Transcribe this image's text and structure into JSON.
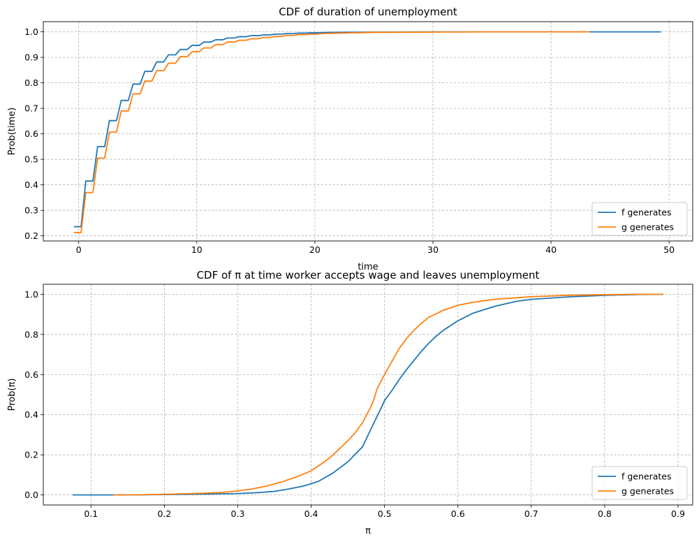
{
  "chart_data": [
    {
      "type": "line",
      "title": "CDF of duration of unemployment",
      "xlabel": "time",
      "ylabel": "Prob(time)",
      "xlim": [
        -3,
        52
      ],
      "ylim": [
        0.18,
        1.04
      ],
      "xticks": [
        0,
        10,
        20,
        30,
        40,
        50
      ],
      "xtick_labels": [
        "0",
        "10",
        "20",
        "30",
        "40",
        "50"
      ],
      "yticks": [
        0.2,
        0.3,
        0.4,
        0.5,
        0.6,
        0.7,
        0.8,
        0.9,
        1.0
      ],
      "ytick_labels": [
        "0.2",
        "0.3",
        "0.4",
        "0.5",
        "0.6",
        "0.7",
        "0.8",
        "0.9",
        "1.0"
      ],
      "grid": true,
      "legend_position": "lower-right",
      "series": [
        {
          "name": "f generates",
          "color": "#1f77b4",
          "x": [
            -0.4,
            0.2,
            0.6,
            1.2,
            1.6,
            2.2,
            2.6,
            3.2,
            3.6,
            4.2,
            4.6,
            5.2,
            5.6,
            6.2,
            6.6,
            7.2,
            7.6,
            8.2,
            8.6,
            9.2,
            9.6,
            10.2,
            10.6,
            11.2,
            11.6,
            12.2,
            12.6,
            13.2,
            13.6,
            14.2,
            14.6,
            15.2,
            15.6,
            16.2,
            16.6,
            17.2,
            17.6,
            18.2,
            18.6,
            19.2,
            19.6,
            20.2,
            20.6,
            22,
            25,
            30,
            35,
            40,
            45,
            49.3
          ],
          "y": [
            0.236,
            0.236,
            0.415,
            0.415,
            0.55,
            0.55,
            0.652,
            0.652,
            0.731,
            0.731,
            0.795,
            0.795,
            0.845,
            0.845,
            0.882,
            0.882,
            0.91,
            0.91,
            0.931,
            0.931,
            0.947,
            0.947,
            0.96,
            0.96,
            0.969,
            0.969,
            0.976,
            0.976,
            0.981,
            0.981,
            0.985,
            0.985,
            0.988,
            0.988,
            0.991,
            0.991,
            0.993,
            0.993,
            0.995,
            0.995,
            0.996,
            0.996,
            0.997,
            0.998,
            0.999,
            1.0,
            1.0,
            1.0,
            1.0,
            1.0
          ]
        },
        {
          "name": "g generates",
          "color": "#ff7f0e",
          "x": [
            -0.4,
            0.2,
            0.6,
            1.2,
            1.6,
            2.2,
            2.6,
            3.2,
            3.6,
            4.2,
            4.6,
            5.2,
            5.6,
            6.2,
            6.6,
            7.2,
            7.6,
            8.2,
            8.6,
            9.2,
            9.6,
            10.2,
            10.6,
            11.2,
            11.6,
            12.2,
            12.6,
            13.2,
            13.6,
            14.2,
            14.6,
            15.2,
            15.6,
            16.2,
            16.6,
            17.2,
            17.6,
            18.2,
            18.6,
            19.2,
            19.6,
            20.2,
            20.6,
            22,
            25,
            30,
            35,
            40,
            43.3
          ],
          "y": [
            0.213,
            0.213,
            0.37,
            0.37,
            0.505,
            0.505,
            0.607,
            0.607,
            0.69,
            0.69,
            0.757,
            0.757,
            0.807,
            0.807,
            0.848,
            0.848,
            0.877,
            0.877,
            0.903,
            0.903,
            0.922,
            0.922,
            0.937,
            0.937,
            0.95,
            0.95,
            0.96,
            0.96,
            0.967,
            0.967,
            0.973,
            0.973,
            0.978,
            0.978,
            0.982,
            0.982,
            0.986,
            0.986,
            0.989,
            0.989,
            0.991,
            0.991,
            0.993,
            0.995,
            0.998,
            0.999,
            1.0,
            1.0,
            1.0
          ]
        }
      ]
    },
    {
      "type": "line",
      "title": "CDF of π at time worker accepts wage and leaves unemployment",
      "xlabel": "π",
      "ylabel": "Prob(π)",
      "xlim": [
        0.035,
        0.92
      ],
      "ylim": [
        -0.05,
        1.05
      ],
      "xticks": [
        0.1,
        0.2,
        0.3,
        0.4,
        0.5,
        0.6,
        0.7,
        0.8,
        0.9
      ],
      "xtick_labels": [
        "0.1",
        "0.2",
        "0.3",
        "0.4",
        "0.5",
        "0.6",
        "0.7",
        "0.8",
        "0.9"
      ],
      "yticks": [
        0.0,
        0.2,
        0.4,
        0.6,
        0.8,
        1.0
      ],
      "ytick_labels": [
        "0.0",
        "0.2",
        "0.4",
        "0.6",
        "0.8",
        "1.0"
      ],
      "grid": true,
      "legend_position": "lower-right",
      "series": [
        {
          "name": "f generates",
          "color": "#1f77b4",
          "x": [
            0.075,
            0.1,
            0.15,
            0.2,
            0.25,
            0.3,
            0.33,
            0.35,
            0.37,
            0.39,
            0.41,
            0.43,
            0.45,
            0.47,
            0.485,
            0.495,
            0.5,
            0.51,
            0.52,
            0.53,
            0.54,
            0.55,
            0.56,
            0.57,
            0.58,
            0.6,
            0.62,
            0.65,
            0.68,
            0.7,
            0.75,
            0.8,
            0.85,
            0.88
          ],
          "y": [
            0.0,
            0.0,
            0.0,
            0.002,
            0.004,
            0.007,
            0.012,
            0.018,
            0.03,
            0.045,
            0.068,
            0.11,
            0.165,
            0.24,
            0.355,
            0.43,
            0.47,
            0.52,
            0.575,
            0.625,
            0.67,
            0.715,
            0.755,
            0.79,
            0.82,
            0.868,
            0.905,
            0.94,
            0.965,
            0.975,
            0.987,
            0.995,
            0.999,
            1.0
          ]
        },
        {
          "name": "g generates",
          "color": "#ff7f0e",
          "x": [
            0.13,
            0.15,
            0.2,
            0.25,
            0.28,
            0.3,
            0.32,
            0.34,
            0.36,
            0.38,
            0.4,
            0.41,
            0.42,
            0.43,
            0.44,
            0.45,
            0.46,
            0.47,
            0.48,
            0.485,
            0.49,
            0.5,
            0.51,
            0.52,
            0.53,
            0.54,
            0.55,
            0.56,
            0.58,
            0.6,
            0.62,
            0.65,
            0.7,
            0.75,
            0.8,
            0.85,
            0.88
          ],
          "y": [
            0.0,
            0.0,
            0.003,
            0.008,
            0.013,
            0.02,
            0.03,
            0.045,
            0.065,
            0.09,
            0.12,
            0.145,
            0.17,
            0.2,
            0.235,
            0.27,
            0.31,
            0.36,
            0.43,
            0.47,
            0.53,
            0.6,
            0.665,
            0.73,
            0.78,
            0.82,
            0.855,
            0.885,
            0.92,
            0.945,
            0.96,
            0.975,
            0.988,
            0.995,
            0.998,
            1.0,
            1.0
          ]
        }
      ]
    }
  ]
}
